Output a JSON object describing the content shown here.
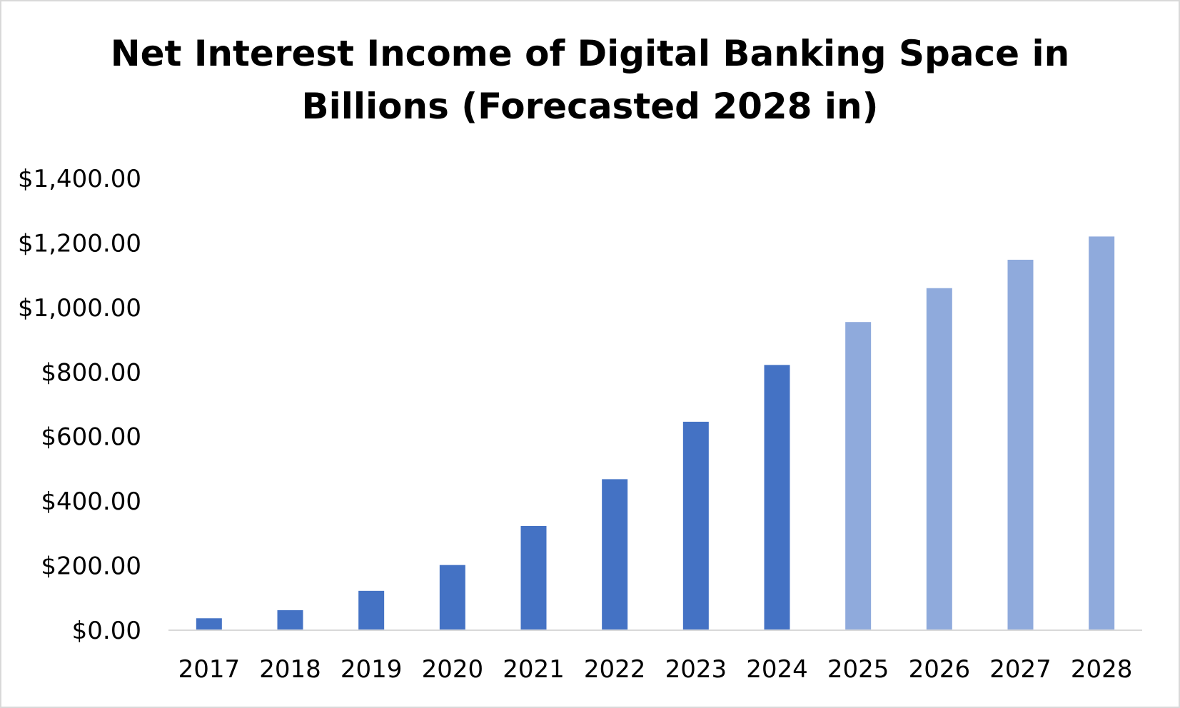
{
  "chart_data": {
    "type": "bar",
    "title_line1": "Net Interest Income of Digital Banking Space in",
    "title_line2": "Billions (Forecasted 2028 in)",
    "xlabel": "",
    "ylabel": "",
    "ylim": [
      0,
      1400
    ],
    "y_ticks": [
      0,
      200,
      400,
      600,
      800,
      1000,
      1200,
      1400
    ],
    "y_tick_labels": [
      "$0.00",
      "$200.00",
      "$400.00",
      "$600.00",
      "$800.00",
      "$1,000.00",
      "$1,200.00",
      "$1,400.00"
    ],
    "grid": false,
    "legend": "none",
    "categories": [
      "2017",
      "2018",
      "2019",
      "2020",
      "2021",
      "2022",
      "2023",
      "2024",
      "2025",
      "2026",
      "2027",
      "2028"
    ],
    "values": [
      37,
      62,
      122,
      202,
      323,
      468,
      646,
      822,
      955,
      1060,
      1148,
      1220
    ],
    "forecast": [
      false,
      false,
      false,
      false,
      false,
      false,
      false,
      false,
      true,
      true,
      true,
      true
    ],
    "colors": {
      "actual": "#4472c4",
      "forecast": "#8faadc",
      "axis": "#d9d9d9"
    }
  }
}
